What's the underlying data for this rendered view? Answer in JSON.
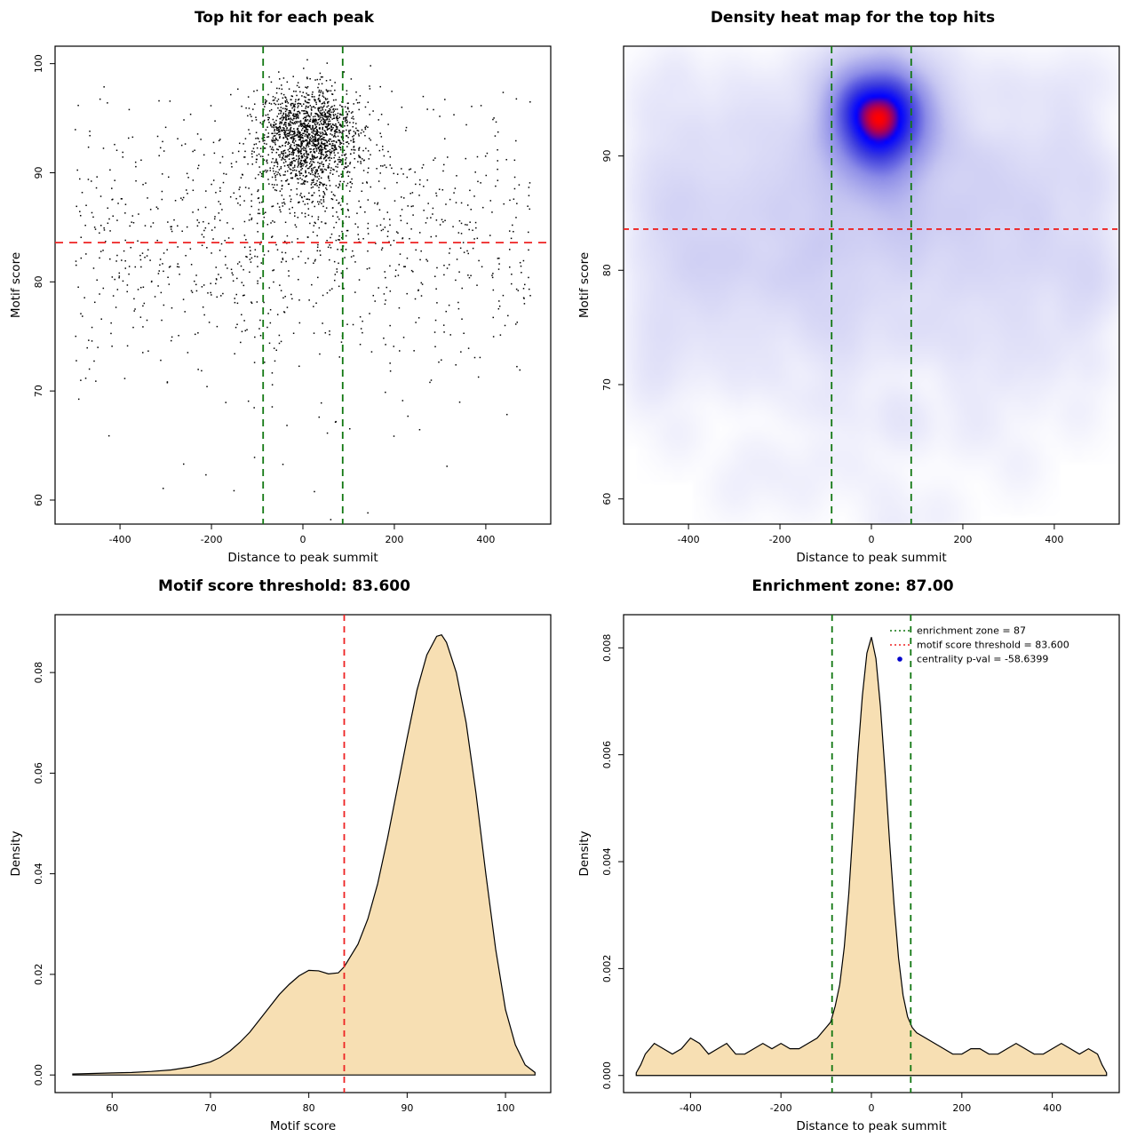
{
  "page": {
    "background": "#ffffff"
  },
  "values": {
    "motif_score_threshold": "83.600",
    "enrichment_zone": "87",
    "enrichment_zone_title_value": "87.00",
    "centrality_p_val": "-58.6399"
  },
  "colors": {
    "density_fill": "#f7dfb3",
    "curve_stroke": "#000000",
    "threshold_red": "#ee2222",
    "zone_green": "#117711",
    "centrality_blue": "#0000cc",
    "heat_hot": "#ff0000",
    "heat_cool": "#0000ff",
    "point_black": "#000000"
  },
  "chart_data": [
    {
      "id": "top-hits-scatter",
      "type": "scatter",
      "title": "Top hit for each peak",
      "xlabel": "Distance to peak summit",
      "ylabel": "Motif score",
      "xlim": [
        -542,
        542
      ],
      "ylim": [
        57.8,
        101.6
      ],
      "xticks": [
        -400,
        -200,
        0,
        200,
        400
      ],
      "xtick_labels": [
        "-400",
        "-200",
        "0",
        "200",
        "400"
      ],
      "yticks": [
        60,
        70,
        80,
        90,
        100
      ],
      "ytick_labels": [
        "60",
        "70",
        "80",
        "90",
        "100"
      ],
      "threshold_line": {
        "y": 83.6,
        "color": "#ee2222",
        "dash": "9 7"
      },
      "zone_lines": {
        "x": [
          -87,
          87
        ],
        "color": "#117711",
        "dash": "8 6"
      },
      "point_color": "#000000",
      "generator": {
        "seed": 1337,
        "clusters": [
          {
            "n": 1500,
            "x_mean": 15,
            "x_sd": 55,
            "y_mean": 93.4,
            "y_sd": 2.2
          },
          {
            "n": 260,
            "x_mean": 10,
            "x_sd": 85,
            "y_mean": 89.0,
            "y_sd": 3.4
          },
          {
            "n": 14,
            "x_mean": 0,
            "x_sd": 260,
            "y_mean": 62.5,
            "y_sd": 2.6
          }
        ],
        "background": {
          "n": 950,
          "x_min": -500,
          "x_max": 500,
          "y_mean": 84,
          "y_sd": 6.5,
          "y_min": 59,
          "y_max": 98
        }
      }
    },
    {
      "id": "density-heatmap",
      "type": "heatmap",
      "title": "Density heat map for the top hits",
      "xlabel": "Distance to peak summit",
      "ylabel": "Motif score",
      "xlim": [
        -542,
        542
      ],
      "ylim": [
        57.8,
        99.6
      ],
      "xticks": [
        -400,
        -200,
        0,
        200,
        400
      ],
      "xtick_labels": [
        "-400",
        "-200",
        "0",
        "200",
        "400"
      ],
      "yticks": [
        60,
        70,
        80,
        90
      ],
      "ytick_labels": [
        "60",
        "70",
        "80",
        "90"
      ],
      "threshold_line": {
        "y": 83.6,
        "color": "#ee2222",
        "dash": "6 5"
      },
      "zone_lines": {
        "x": [
          -87,
          87
        ],
        "color": "#117711",
        "dash": "8 6"
      },
      "colormap": {
        "positions": [
          0,
          0.12,
          0.35,
          0.58,
          0.78,
          0.9,
          1
        ],
        "colors": [
          "#ffffff",
          "#e8e8fa",
          "#c5c5f1",
          "#8d8de7",
          "#3a3add",
          "#0000ff",
          "#ff0000"
        ],
        "gamma": 0.42
      },
      "generator": {
        "seed": 1337,
        "clusters": [
          {
            "n": 1500,
            "x_mean": 15,
            "x_sd": 55,
            "y_mean": 93.4,
            "y_sd": 2.2
          },
          {
            "n": 260,
            "x_mean": 10,
            "x_sd": 85,
            "y_mean": 89.0,
            "y_sd": 3.4
          },
          {
            "n": 14,
            "x_mean": 0,
            "x_sd": 260,
            "y_mean": 62.5,
            "y_sd": 2.6
          }
        ],
        "background": {
          "n": 950,
          "x_min": -500,
          "x_max": 500,
          "y_mean": 84,
          "y_sd": 6.5,
          "y_min": 59,
          "y_max": 98
        }
      }
    },
    {
      "id": "motif-score-density",
      "type": "area",
      "title": "Motif score threshold: 83.600",
      "xlabel": "Motif score",
      "ylabel": "Density",
      "xlim": [
        54.2,
        104.6
      ],
      "ylim": [
        -0.0035,
        0.0915
      ],
      "xticks": [
        60,
        70,
        80,
        90,
        100
      ],
      "xtick_labels": [
        "60",
        "70",
        "80",
        "90",
        "100"
      ],
      "yticks": [
        0,
        0.02,
        0.04,
        0.06,
        0.08
      ],
      "ytick_labels": [
        "0.00",
        "0.02",
        "0.04",
        "0.06",
        "0.08"
      ],
      "fill": "#f7dfb3",
      "stroke": "#000000",
      "threshold_line": {
        "x": 83.6,
        "color": "#ee2222",
        "dash": "7 6"
      },
      "points": [
        [
          56,
          0.0002
        ],
        [
          58,
          0.0003
        ],
        [
          60,
          0.0004
        ],
        [
          62,
          0.0005
        ],
        [
          64,
          0.0007
        ],
        [
          66,
          0.001
        ],
        [
          68,
          0.0016
        ],
        [
          70,
          0.0026
        ],
        [
          71,
          0.0035
        ],
        [
          72,
          0.0048
        ],
        [
          73,
          0.0065
        ],
        [
          74,
          0.0085
        ],
        [
          75,
          0.011
        ],
        [
          76,
          0.0135
        ],
        [
          77,
          0.016
        ],
        [
          78,
          0.018
        ],
        [
          79,
          0.0197
        ],
        [
          80,
          0.0208
        ],
        [
          81,
          0.0207
        ],
        [
          82,
          0.0201
        ],
        [
          83,
          0.0203
        ],
        [
          83.6,
          0.0215
        ],
        [
          84,
          0.0228
        ],
        [
          85,
          0.026
        ],
        [
          86,
          0.031
        ],
        [
          87,
          0.038
        ],
        [
          88,
          0.047
        ],
        [
          89,
          0.057
        ],
        [
          90,
          0.067
        ],
        [
          91,
          0.0765
        ],
        [
          92,
          0.0835
        ],
        [
          93,
          0.0872
        ],
        [
          93.5,
          0.0875
        ],
        [
          94,
          0.086
        ],
        [
          95,
          0.08
        ],
        [
          96,
          0.07
        ],
        [
          97,
          0.056
        ],
        [
          98,
          0.04
        ],
        [
          99,
          0.025
        ],
        [
          100,
          0.013
        ],
        [
          101,
          0.006
        ],
        [
          102,
          0.002
        ],
        [
          103,
          0.0005
        ]
      ]
    },
    {
      "id": "summit-distance-density",
      "type": "area",
      "title": "Enrichment zone: 87.00",
      "xlabel": "Distance to peak summit",
      "ylabel": "Density",
      "xlim": [
        -548,
        548
      ],
      "ylim": [
        -0.00032,
        0.00862
      ],
      "xticks": [
        -400,
        -200,
        0,
        200,
        400
      ],
      "xtick_labels": [
        "-400",
        "-200",
        "0",
        "200",
        "400"
      ],
      "yticks": [
        0,
        0.002,
        0.004,
        0.006,
        0.008
      ],
      "ytick_labels": [
        "0.000",
        "0.002",
        "0.004",
        "0.006",
        "0.008"
      ],
      "fill": "#f7dfb3",
      "stroke": "#000000",
      "zone_lines": {
        "x": [
          -87,
          87
        ],
        "color": "#117711",
        "dash": "7 6"
      },
      "legend": {
        "items": [
          {
            "marker": "dotted-line",
            "color": "#117711",
            "label": "enrichment zone = 87"
          },
          {
            "marker": "dotted-line",
            "color": "#ee2222",
            "label": "motif score threshold = 83.600"
          },
          {
            "marker": "point",
            "color": "#0000cc",
            "label": "centrality p-val = -58.6399"
          }
        ]
      },
      "points": [
        [
          -520,
          5e-05
        ],
        [
          -510,
          0.0002
        ],
        [
          -500,
          0.0004
        ],
        [
          -480,
          0.0006
        ],
        [
          -460,
          0.0005
        ],
        [
          -440,
          0.0004
        ],
        [
          -420,
          0.0005
        ],
        [
          -400,
          0.0007
        ],
        [
          -380,
          0.0006
        ],
        [
          -360,
          0.0004
        ],
        [
          -340,
          0.0005
        ],
        [
          -320,
          0.0006
        ],
        [
          -300,
          0.0004
        ],
        [
          -280,
          0.0004
        ],
        [
          -260,
          0.0005
        ],
        [
          -240,
          0.0006
        ],
        [
          -220,
          0.0005
        ],
        [
          -200,
          0.0006
        ],
        [
          -180,
          0.0005
        ],
        [
          -160,
          0.0005
        ],
        [
          -140,
          0.0006
        ],
        [
          -120,
          0.0007
        ],
        [
          -100,
          0.0009
        ],
        [
          -90,
          0.001
        ],
        [
          -80,
          0.0013
        ],
        [
          -70,
          0.0017
        ],
        [
          -60,
          0.0024
        ],
        [
          -50,
          0.0034
        ],
        [
          -40,
          0.0047
        ],
        [
          -30,
          0.006
        ],
        [
          -20,
          0.0071
        ],
        [
          -10,
          0.0079
        ],
        [
          0,
          0.0082
        ],
        [
          10,
          0.0078
        ],
        [
          20,
          0.0069
        ],
        [
          30,
          0.0057
        ],
        [
          40,
          0.0044
        ],
        [
          50,
          0.0032
        ],
        [
          60,
          0.0022
        ],
        [
          70,
          0.0015
        ],
        [
          80,
          0.0011
        ],
        [
          90,
          0.0009
        ],
        [
          100,
          0.0008
        ],
        [
          120,
          0.0007
        ],
        [
          140,
          0.0006
        ],
        [
          160,
          0.0005
        ],
        [
          180,
          0.0004
        ],
        [
          200,
          0.0004
        ],
        [
          220,
          0.0005
        ],
        [
          240,
          0.0005
        ],
        [
          260,
          0.0004
        ],
        [
          280,
          0.0004
        ],
        [
          300,
          0.0005
        ],
        [
          320,
          0.0006
        ],
        [
          340,
          0.0005
        ],
        [
          360,
          0.0004
        ],
        [
          380,
          0.0004
        ],
        [
          400,
          0.0005
        ],
        [
          420,
          0.0006
        ],
        [
          440,
          0.0005
        ],
        [
          460,
          0.0004
        ],
        [
          480,
          0.0005
        ],
        [
          500,
          0.0004
        ],
        [
          510,
          0.0002
        ],
        [
          520,
          5e-05
        ]
      ]
    }
  ]
}
